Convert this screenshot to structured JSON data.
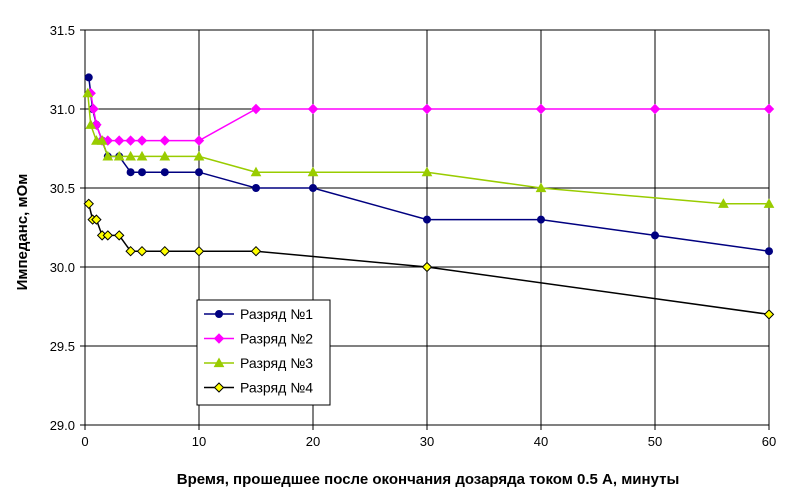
{
  "chart_data": {
    "type": "line",
    "title": "",
    "xlabel": "Время, прошедшее после окончания дозаряда током 0.5 А, минуты",
    "ylabel": "Импеданс, мОм",
    "xlim": [
      0,
      60
    ],
    "ylim": [
      29.0,
      31.5
    ],
    "x_ticks": [
      "0",
      "10",
      "20",
      "30",
      "40",
      "50",
      "60"
    ],
    "y_ticks": [
      "29.0",
      "29.5",
      "30.0",
      "30.5",
      "31.0",
      "31.5"
    ],
    "grid": true,
    "legend_position": "bottom-left",
    "series": [
      {
        "name": "Разряд №1",
        "color": "#000080",
        "marker": "circle",
        "x": [
          0.33,
          0.67,
          1,
          1.5,
          2,
          3,
          4,
          5,
          7,
          10,
          15,
          20,
          30,
          40,
          50,
          60
        ],
        "y": [
          31.2,
          31.0,
          30.9,
          30.8,
          30.7,
          30.7,
          30.6,
          30.6,
          30.6,
          30.6,
          30.5,
          30.5,
          30.3,
          30.3,
          30.2,
          30.1
        ]
      },
      {
        "name": "Разряд №2",
        "color": "#ff00ff",
        "marker": "diamond",
        "x": [
          0.5,
          0.75,
          1,
          1.5,
          2,
          3,
          4,
          5,
          7,
          10,
          15,
          20,
          30,
          40,
          50,
          60
        ],
        "y": [
          31.1,
          31.0,
          30.9,
          30.8,
          30.8,
          30.8,
          30.8,
          30.8,
          30.8,
          30.8,
          31.0,
          31.0,
          31.0,
          31.0,
          31.0,
          31.0
        ]
      },
      {
        "name": "Разряд №3",
        "color": "#99cc00",
        "marker": "triangle",
        "x": [
          0.25,
          0.5,
          1,
          1.5,
          2,
          3,
          4,
          5,
          7,
          10,
          15,
          20,
          30,
          40,
          56,
          60
        ],
        "y": [
          31.1,
          30.9,
          30.8,
          30.8,
          30.7,
          30.7,
          30.7,
          30.7,
          30.7,
          30.7,
          30.6,
          30.6,
          30.6,
          30.5,
          30.4,
          30.4
        ]
      },
      {
        "name": "Разряд №4",
        "color": "#000000",
        "marker_fill": "#ffff00",
        "marker": "diamond",
        "x": [
          0.33,
          0.67,
          1,
          1.5,
          2,
          3,
          4,
          5,
          7,
          10,
          15,
          30,
          60
        ],
        "y": [
          30.4,
          30.3,
          30.3,
          30.2,
          30.2,
          30.2,
          30.1,
          30.1,
          30.1,
          30.1,
          30.1,
          30.0,
          29.7
        ]
      }
    ]
  }
}
